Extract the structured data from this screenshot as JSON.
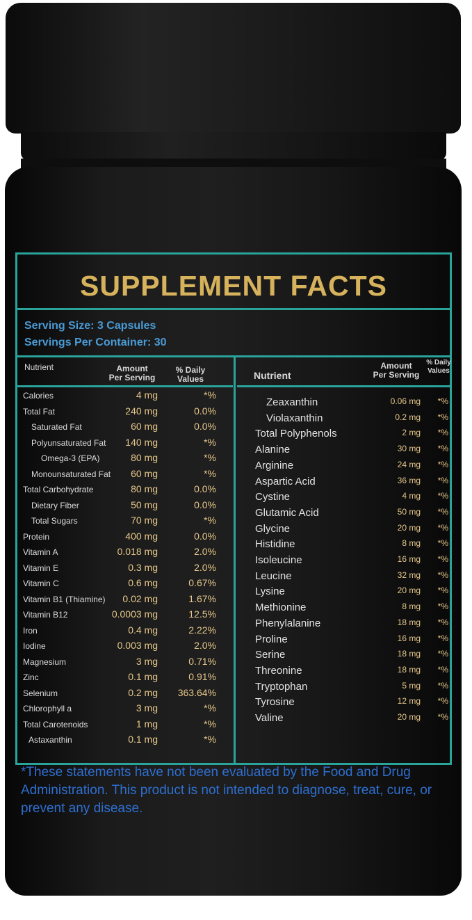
{
  "label": {
    "title": "SUPPLEMENT FACTS",
    "serving_size": "Serving Size: 3 Capsules",
    "servings_per_container": "Servings Per Container: 30",
    "left_headers": {
      "nutrient": "Nutrient",
      "amount": "Amount\nPer Serving",
      "dv": "% Daily\nValues"
    },
    "right_headers": {
      "nutrient": "Nutrient",
      "amount": "Amount\nPer Serving",
      "dv": "% Daily\nValues"
    },
    "left_rows": [
      {
        "name": "Calories",
        "amount": "4 mg",
        "dv": "*%"
      },
      {
        "name": "Total Fat",
        "amount": "240 mg",
        "dv": "0.0%"
      },
      {
        "name": "Saturated Fat",
        "amount": "60 mg",
        "dv": "0.0%"
      },
      {
        "name": "Polyunsaturated Fat",
        "amount": "140 mg",
        "dv": "*%"
      },
      {
        "name": "Omega-3 (EPA)",
        "amount": "80 mg",
        "dv": "*%"
      },
      {
        "name": "Monounsaturated Fat",
        "amount": "60 mg",
        "dv": "*%"
      },
      {
        "name": "Total Carbohydrate",
        "amount": "80 mg",
        "dv": "0.0%"
      },
      {
        "name": "Dietary Fiber",
        "amount": "50 mg",
        "dv": "0.0%"
      },
      {
        "name": "Total Sugars",
        "amount": "70 mg",
        "dv": "*%"
      },
      {
        "name": "Protein",
        "amount": "400 mg",
        "dv": "0.0%"
      },
      {
        "name": "Vitamin A",
        "amount": "0.018 mg",
        "dv": "2.0%"
      },
      {
        "name": "Vitamin E",
        "amount": "0.3 mg",
        "dv": "2.0%"
      },
      {
        "name": "Vitamin C",
        "amount": "0.6 mg",
        "dv": "0.67%"
      },
      {
        "name": "Vitamin B1 (Thiamine)",
        "amount": "0.02 mg",
        "dv": "1.67%"
      },
      {
        "name": "Vitamin B12",
        "amount": "0.0003 mg",
        "dv": "12.5%"
      },
      {
        "name": "Iron",
        "amount": "0.4 mg",
        "dv": "2.22%"
      },
      {
        "name": "Iodine",
        "amount": "0.003 mg",
        "dv": "2.0%"
      },
      {
        "name": "Magnesium",
        "amount": "3 mg",
        "dv": "0.71%"
      },
      {
        "name": "Zinc",
        "amount": "0.1 mg",
        "dv": "0.91%"
      },
      {
        "name": "Selenium",
        "amount": "0.2 mg",
        "dv": "363.64%"
      },
      {
        "name": "Chlorophyll a",
        "amount": "3 mg",
        "dv": "*%"
      },
      {
        "name": "Total Carotenoids",
        "amount": "1 mg",
        "dv": "*%"
      },
      {
        "name": "Astaxanthin",
        "amount": "0.1 mg",
        "dv": "*%"
      }
    ],
    "right_rows": [
      {
        "name": "Zeaxanthin",
        "amount": "0.06 mg",
        "dv": "*%"
      },
      {
        "name": "Violaxanthin",
        "amount": "0.2 mg",
        "dv": "*%"
      },
      {
        "name": "Total Polyphenols",
        "amount": "2 mg",
        "dv": "*%"
      },
      {
        "name": "Alanine",
        "amount": "30 mg",
        "dv": "*%"
      },
      {
        "name": "Arginine",
        "amount": "24 mg",
        "dv": "*%"
      },
      {
        "name": "Aspartic Acid",
        "amount": "36 mg",
        "dv": "*%"
      },
      {
        "name": "Cystine",
        "amount": "4 mg",
        "dv": "*%"
      },
      {
        "name": "Glutamic Acid",
        "amount": "50 mg",
        "dv": "*%"
      },
      {
        "name": "Glycine",
        "amount": "20 mg",
        "dv": "*%"
      },
      {
        "name": "Histidine",
        "amount": "8 mg",
        "dv": "*%"
      },
      {
        "name": "Isoleucine",
        "amount": "16 mg",
        "dv": "*%"
      },
      {
        "name": "Leucine",
        "amount": "32 mg",
        "dv": "*%"
      },
      {
        "name": "Lysine",
        "amount": "20 mg",
        "dv": "*%"
      },
      {
        "name": "Methionine",
        "amount": "8 mg",
        "dv": "*%"
      },
      {
        "name": "Phenylalanine",
        "amount": "18 mg",
        "dv": "*%"
      },
      {
        "name": "Proline",
        "amount": "16 mg",
        "dv": "*%"
      },
      {
        "name": "Serine",
        "amount": "18 mg",
        "dv": "*%"
      },
      {
        "name": "Threonine",
        "amount": "18 mg",
        "dv": "*%"
      },
      {
        "name": "Tryptophan",
        "amount": "5 mg",
        "dv": "*%"
      },
      {
        "name": "Tyrosine",
        "amount": "12 mg",
        "dv": "*%"
      },
      {
        "name": "Valine",
        "amount": "20 mg",
        "dv": "*%"
      }
    ],
    "disclaimer": "*These statements have not been evaluated by the Food and Drug Administration. This product is not intended to diagnose, treat, cure, or prevent any disease."
  },
  "colors": {
    "teal_border": "#2aa39a",
    "gold_text": "#d6b25c",
    "blue_text": "#4a9bd6",
    "disclaimer_blue": "#2e6fd0",
    "bottle_black": "#1b1b1b"
  }
}
